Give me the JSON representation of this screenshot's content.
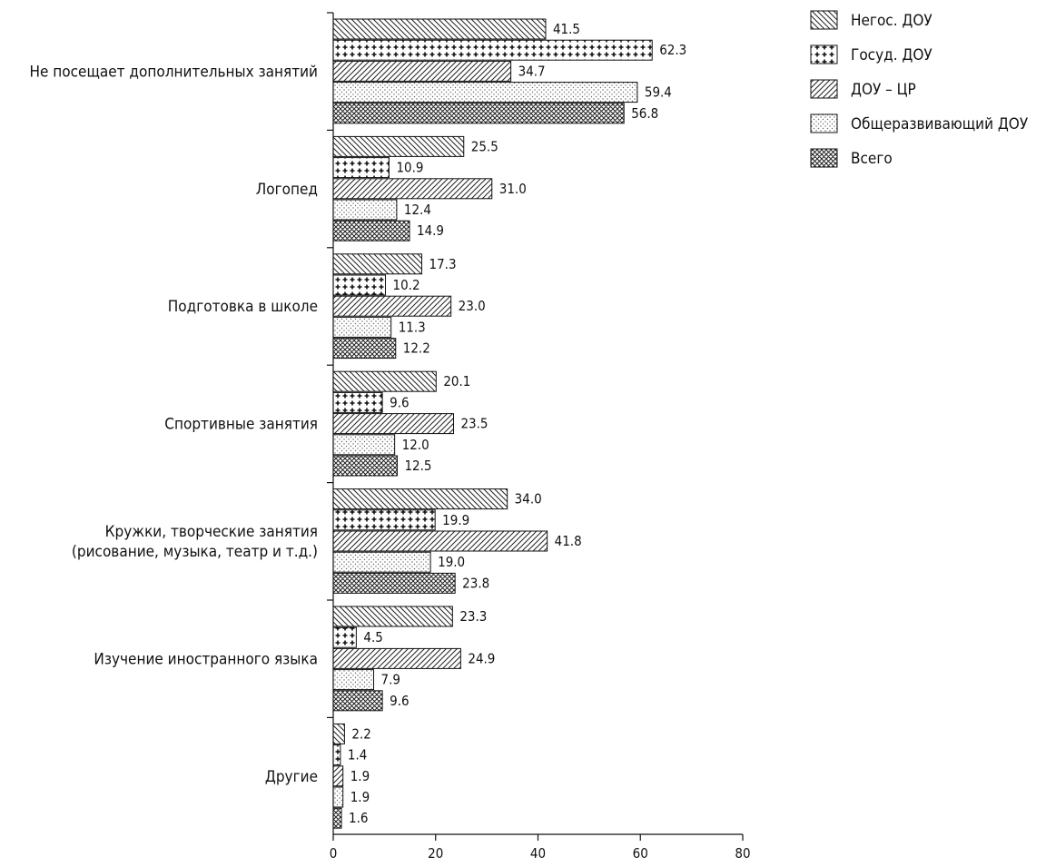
{
  "chart_data": {
    "type": "bar",
    "orientation": "horizontal",
    "categories": [
      [
        "Не посещает дополнительных занятий"
      ],
      [
        "Логопед"
      ],
      [
        "Подготовка в школе"
      ],
      [
        "Спортивные занятия"
      ],
      [
        "Кружки, творческие занятия",
        "(рисование, музыка, театр и т.д.)"
      ],
      [
        "Изучение иностранного языка"
      ],
      [
        "Другие"
      ]
    ],
    "series": [
      {
        "name": "Негос. ДОУ",
        "pattern": "diag-back",
        "values": [
          41.5,
          25.5,
          17.3,
          20.1,
          34.0,
          23.3,
          2.2
        ],
        "labels": [
          "41.5",
          "25.5",
          "17.3",
          "20.1",
          "34.0",
          "23.3",
          "2.2"
        ]
      },
      {
        "name": "Госуд. ДОУ",
        "pattern": "plus",
        "values": [
          62.3,
          10.9,
          10.2,
          9.6,
          19.9,
          4.5,
          1.4
        ],
        "labels": [
          "62.3",
          "10.9",
          "10.2",
          "9.6",
          "19.9",
          "4.5",
          "1.4"
        ]
      },
      {
        "name": "ДОУ – ЦР",
        "pattern": "diag-fwd",
        "values": [
          34.7,
          31.0,
          23.0,
          23.5,
          41.8,
          24.9,
          1.9
        ],
        "labels": [
          "34.7",
          "31.0",
          "23.0",
          "23.5",
          "41.8",
          "24.9",
          "1.9"
        ]
      },
      {
        "name": "Общеразвивающий ДОУ",
        "pattern": "dots",
        "values": [
          59.4,
          12.4,
          11.3,
          12.0,
          19.0,
          7.9,
          1.9
        ],
        "labels": [
          "59.4",
          "12.4",
          "11.3",
          "12.0",
          "19.0",
          "7.9",
          "1.9"
        ]
      },
      {
        "name": "Всего",
        "pattern": "crosshatch",
        "values": [
          56.8,
          14.9,
          12.2,
          12.5,
          23.8,
          9.6,
          1.6
        ],
        "labels": [
          "56.8",
          "14.9",
          "12.2",
          "12.5",
          "23.8",
          "9.6",
          "1.6"
        ]
      }
    ],
    "xlim": [
      0,
      80
    ],
    "xticks": [
      0,
      20,
      40,
      60,
      80
    ],
    "grid": false,
    "legend_position": "top-right"
  }
}
